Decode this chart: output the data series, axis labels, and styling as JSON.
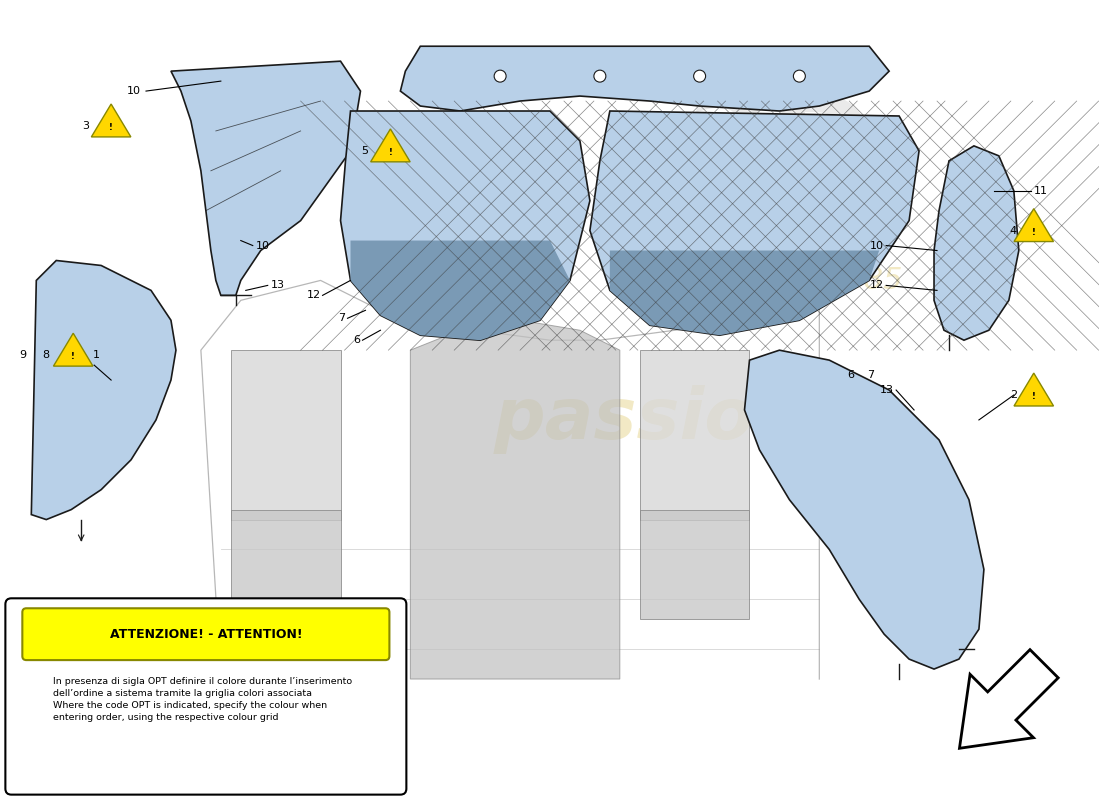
{
  "bg_color": "#ffffff",
  "part_color": "#b8d0e8",
  "part_edge_color": "#1a1a1a",
  "crosshatch_color": "#555555",
  "attention_title": "ATTENZIONE! - ATTENTION!",
  "attention_line1": "In presenza di sigla OPT definire il colore durante l’inserimento",
  "attention_line2": "dell’ordine a sistema tramite la griglia colori associata",
  "attention_line3": "Where the code OPT is indicated, specify the colour when",
  "attention_line4": "entering order, using the respective colour grid",
  "warning_icon_color": "#ffd700",
  "warning_icon_border": "#888800",
  "label_fontsize": 8,
  "watermark_3d_color": "#dddddd",
  "watermark_passion_color": "#d4b840",
  "watermark_since_color": "#d4b840"
}
